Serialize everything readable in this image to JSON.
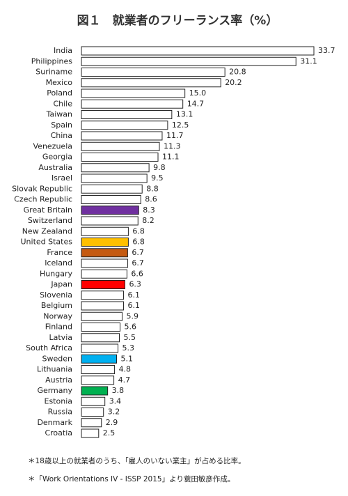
{
  "chart_data": {
    "type": "bar",
    "orientation": "horizontal",
    "title": "図１　就業者のフリーランス率（%）",
    "categories": [
      "India",
      "Philippines",
      "Suriname",
      "Mexico",
      "Poland",
      "Chile",
      "Taiwan",
      "Spain",
      "China",
      "Venezuela",
      "Georgia",
      "Australia",
      "Israel",
      "Slovak Republic",
      "Czech Republic",
      "Great Britain",
      "Switzerland",
      "New Zealand",
      "United States",
      "France",
      "Iceland",
      "Hungary",
      "Japan",
      "Slovenia",
      "Belgium",
      "Norway",
      "Finland",
      "Latvia",
      "South Africa",
      "Sweden",
      "Lithuania",
      "Austria",
      "Germany",
      "Estonia",
      "Russia",
      "Denmark",
      "Croatia"
    ],
    "values": [
      33.7,
      31.1,
      20.8,
      20.2,
      15.0,
      14.7,
      13.1,
      12.5,
      11.7,
      11.3,
      11.1,
      9.8,
      9.5,
      8.8,
      8.6,
      8.3,
      8.2,
      6.8,
      6.8,
      6.7,
      6.7,
      6.6,
      6.3,
      6.1,
      6.1,
      5.9,
      5.6,
      5.5,
      5.3,
      5.1,
      4.8,
      4.7,
      3.8,
      3.4,
      3.2,
      2.9,
      2.5
    ],
    "value_labels": [
      "33.7",
      "31.1",
      "20.8",
      "20.2",
      "15.0",
      "14.7",
      "13.1",
      "12.5",
      "11.7",
      "11.3",
      "11.1",
      "9.8",
      "9.5",
      "8.8",
      "8.6",
      "8.3",
      "8.2",
      "6.8",
      "6.8",
      "6.7",
      "6.7",
      "6.6",
      "6.3",
      "6.1",
      "6.1",
      "5.9",
      "5.6",
      "5.5",
      "5.3",
      "5.1",
      "4.8",
      "4.7",
      "3.8",
      "3.4",
      "3.2",
      "2.9",
      "2.5"
    ],
    "colors": [
      "#ffffff",
      "#ffffff",
      "#ffffff",
      "#ffffff",
      "#ffffff",
      "#ffffff",
      "#ffffff",
      "#ffffff",
      "#ffffff",
      "#ffffff",
      "#ffffff",
      "#ffffff",
      "#ffffff",
      "#ffffff",
      "#ffffff",
      "#7030a0",
      "#ffffff",
      "#ffffff",
      "#ffc000",
      "#c55a11",
      "#ffffff",
      "#ffffff",
      "#ff0000",
      "#ffffff",
      "#ffffff",
      "#ffffff",
      "#ffffff",
      "#ffffff",
      "#ffffff",
      "#00b0f0",
      "#ffffff",
      "#ffffff",
      "#00b050",
      "#ffffff",
      "#ffffff",
      "#ffffff",
      "#ffffff"
    ],
    "notes": [
      "＊18歳以上の就業者のうち、「雇人のいない業主」が占める比率。",
      "＊「Work Orientations IV - ISSP 2015」より蓑田敏彦作成。"
    ]
  }
}
